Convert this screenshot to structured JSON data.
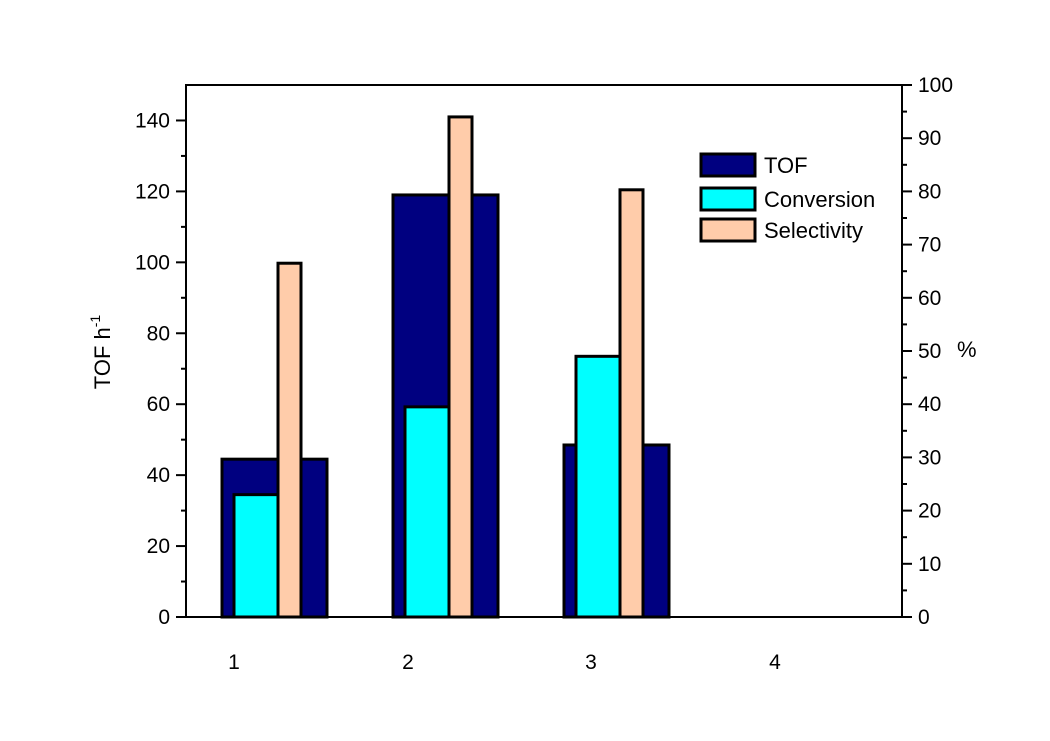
{
  "chart_data": {
    "type": "bar",
    "categories": [
      "1",
      "2",
      "3",
      "4"
    ],
    "series": [
      {
        "name": "TOF",
        "axis": "left",
        "color": "#000080",
        "values": [
          44.5,
          119,
          48.5,
          null
        ]
      },
      {
        "name": "Conversion",
        "axis": "right",
        "color": "#00FFFF",
        "values": [
          23,
          39.5,
          49,
          null
        ]
      },
      {
        "name": "Selectivity",
        "axis": "right",
        "color": "#FFCCAA",
        "values": [
          66.5,
          94,
          80.3,
          null
        ]
      }
    ],
    "ylabel_left": {
      "base": "TOF h",
      "sup": "-1"
    },
    "ylabel_right": "%",
    "ylim_left": [
      0,
      150
    ],
    "ylim_right": [
      0,
      100
    ],
    "yticks_left": [
      0,
      20,
      40,
      60,
      80,
      100,
      120,
      140
    ],
    "yticks_right": [
      0,
      10,
      20,
      30,
      40,
      50,
      60,
      70,
      80,
      90,
      100
    ],
    "grid": false,
    "legend_position": "top-right"
  }
}
